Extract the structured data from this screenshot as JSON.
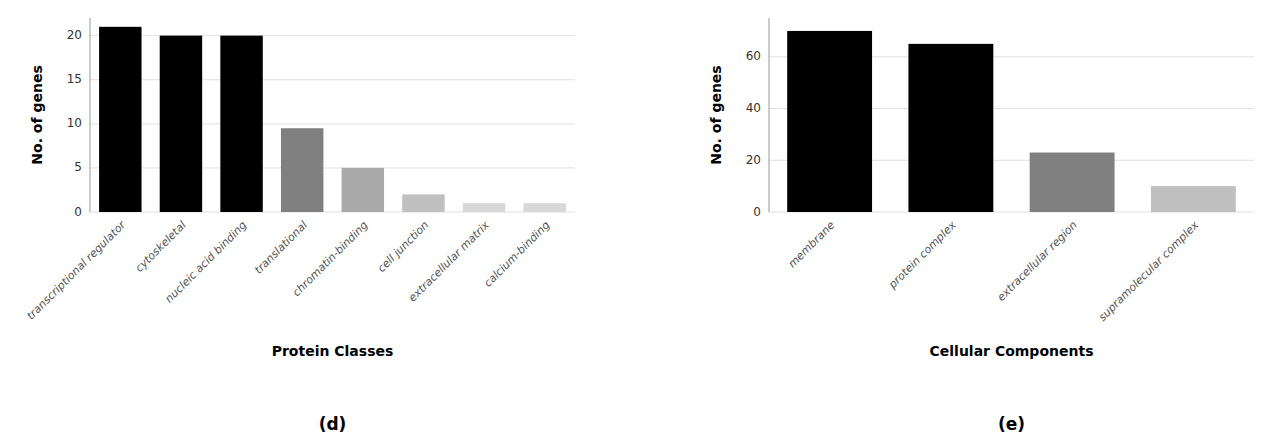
{
  "chart_data": [
    {
      "type": "bar",
      "title": "(d)",
      "categories": [
        "transcriptional regulator",
        "cytoskeletal",
        "nucleic acid binding",
        "translational",
        "chromatin-binding",
        "cell junction",
        "extracellular matrix",
        "calcium-binding"
      ],
      "values": [
        21,
        20,
        20,
        9.5,
        5,
        2,
        1,
        1
      ],
      "colors": [
        "#000000",
        "#000000",
        "#000000",
        "#808080",
        "#a9a9a9",
        "#c0c0c0",
        "#d8d8d8",
        "#d8d8d8"
      ],
      "xlabel": "Protein Classes",
      "ylabel": "No. of genes",
      "ylim": [
        0,
        22
      ],
      "yticks": [
        0,
        5,
        10,
        15,
        20
      ],
      "grid": true
    },
    {
      "type": "bar",
      "title": "(e)",
      "categories": [
        "membrane",
        "protein complex",
        "extracellular region",
        "supramolecular complex"
      ],
      "values": [
        70,
        65,
        23,
        10
      ],
      "colors": [
        "#000000",
        "#000000",
        "#808080",
        "#c0c0c0"
      ],
      "xlabel": "Cellular Components",
      "ylabel": "No. of genes",
      "ylim": [
        0,
        75
      ],
      "yticks": [
        0,
        20,
        40,
        60
      ],
      "grid": true
    }
  ]
}
